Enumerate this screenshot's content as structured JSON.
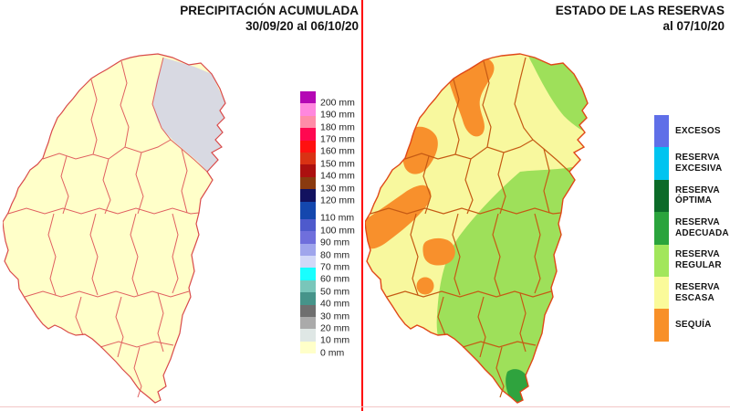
{
  "page": {
    "background": "#FFFFFF",
    "divider_color": "#FF0000",
    "baseline_color": "#F2C6C6"
  },
  "left_panel": {
    "title": "PRECIPITACIÓN ACUMULADA",
    "subtitle": "30/09/20 al 06/10/20",
    "map": {
      "base_fill": "#FFFFC9",
      "outline_color": "#D94A4A",
      "department_line_color": "#E06060",
      "overlay_zone": {
        "name": "northeast-low-precip-zone",
        "fill": "#D8D9E2"
      }
    },
    "legend": {
      "items": [
        {
          "label": "200 mm",
          "color": "#B408B4"
        },
        {
          "label": "190 mm",
          "color": "#FF87DE"
        },
        {
          "label": "180 mm",
          "color": "#FF8CA8"
        },
        {
          "label": "170 mm",
          "color": "#FF0850"
        },
        {
          "label": "160 mm",
          "color": "#FF1010"
        },
        {
          "label": "150 mm",
          "color": "#D93214"
        },
        {
          "label": "140 mm",
          "color": "#AC1010"
        },
        {
          "label": "130 mm",
          "color": "#8A3A10"
        },
        {
          "label": "120 mm",
          "color": "#12125F"
        },
        {
          "label": "110 mm",
          "color": "#1447AE"
        },
        {
          "label": "100 mm",
          "color": "#4E5ACC"
        },
        {
          "label": "90 mm",
          "color": "#6F6FDC"
        },
        {
          "label": "80 mm",
          "color": "#9FA5EC"
        },
        {
          "label": "70 mm",
          "color": "#D2D8F8"
        },
        {
          "label": "60 mm",
          "color": "#18FFFF"
        },
        {
          "label": "50 mm",
          "color": "#79C6BA"
        },
        {
          "label": "40 mm",
          "color": "#46948A"
        },
        {
          "label": "30 mm",
          "color": "#6F6F6F"
        },
        {
          "label": "20 mm",
          "color": "#AAAAAA"
        },
        {
          "label": "10 mm",
          "color": "#DFE7E5"
        },
        {
          "label": "0 mm",
          "color": "#FFFFC9"
        }
      ]
    }
  },
  "right_panel": {
    "title": "ESTADO DE LAS RESERVAS",
    "subtitle": "al 07/10/20",
    "map": {
      "base_fill": "#F8F89E",
      "outline_color": "#E04818",
      "department_line_color": "#C55A14",
      "zones": [
        {
          "name": "sequia-north-band",
          "status": "SEQUÍA",
          "fill": "#F8902C"
        },
        {
          "name": "sequia-west-upper",
          "status": "SEQUÍA",
          "fill": "#F8902C"
        },
        {
          "name": "sequia-west-band",
          "status": "SEQUÍA",
          "fill": "#F8902C"
        },
        {
          "name": "sequia-center-blob",
          "status": "SEQUÍA",
          "fill": "#F8902C"
        },
        {
          "name": "sequia-center-small",
          "status": "SEQUÍA",
          "fill": "#F8902C"
        },
        {
          "name": "regular-northeast",
          "status": "RESERVA REGULAR",
          "fill": "#9EE05A"
        },
        {
          "name": "regular-southeast",
          "status": "RESERVA REGULAR",
          "fill": "#9EE05A"
        },
        {
          "name": "adecuada-south-tip",
          "status": "RESERVA ADECUADA",
          "fill": "#2FA33E"
        }
      ]
    },
    "legend": {
      "items": [
        {
          "label": "EXCESOS",
          "color": "#5F6FE8"
        },
        {
          "label": "RESERVA EXCESIVA",
          "color": "#00C4F0"
        },
        {
          "label": "RESERVA ÓPTIMA",
          "color": "#0B6B28"
        },
        {
          "label": "RESERVA ADECUADA",
          "color": "#2AA43C"
        },
        {
          "label": "RESERVA REGULAR",
          "color": "#A2E65C"
        },
        {
          "label": "RESERVA ESCASA",
          "color": "#FAFA9A"
        },
        {
          "label": "SEQUÍA",
          "color": "#F89028"
        }
      ]
    }
  }
}
